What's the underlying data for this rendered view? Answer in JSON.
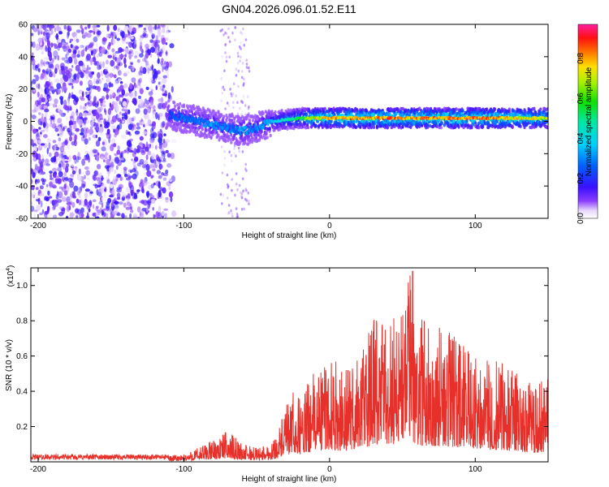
{
  "title": "GN04.2026.096.01.52.E11",
  "chart_data": [
    {
      "type": "heatmap",
      "title": "GN04.2026.096.01.52.E11",
      "xlabel": "Height of straight line (km)",
      "ylabel": "Frequency (Hz)",
      "xlim": [
        -205,
        150
      ],
      "ylim": [
        -60,
        60
      ],
      "xticks": [
        -200,
        -100,
        0,
        100
      ],
      "yticks": [
        60,
        40,
        20,
        0,
        -20,
        -40,
        -60
      ],
      "colorbar": {
        "label": "Normalized spectral amplitude",
        "range": [
          0,
          0.97
        ],
        "ticks": [
          0.0,
          0.2,
          0.4,
          0.6,
          0.8
        ],
        "colormap": "rainbow (violet-blue-cyan-green-yellow-red-pink)"
      },
      "ridge": {
        "description": "Dominant spectral ridge centred near 0-5 Hz, dipping to about -10 Hz near -60 km",
        "x": [
          -110,
          -100,
          -90,
          -80,
          -70,
          -60,
          -50,
          -40,
          -30,
          -20,
          -10,
          0,
          20,
          50,
          80,
          110,
          150
        ],
        "y": [
          4,
          2,
          0,
          -2,
          -4,
          -6,
          -4,
          0,
          1,
          2,
          2,
          2,
          2,
          2,
          2,
          2,
          2
        ],
        "amplitude": [
          0.25,
          0.3,
          0.3,
          0.35,
          0.3,
          0.35,
          0.3,
          0.4,
          0.5,
          0.6,
          0.8,
          0.85,
          0.9,
          0.9,
          0.9,
          0.9,
          0.75
        ]
      },
      "noise_region": {
        "x_range": [
          -205,
          -110
        ],
        "typical_amplitude": 0.15
      },
      "secondary_band": {
        "x_range": [
          -75,
          -55
        ],
        "typical_amplitude": 0.08
      }
    },
    {
      "type": "line",
      "xlabel": "Height of straight line (km)",
      "ylabel": "SNR (10 * v/v)",
      "y_scale_label": "(x10",
      "y_scale_exp": "4",
      "xlim": [
        -205,
        150
      ],
      "ylim": [
        0,
        1.1
      ],
      "xticks": [
        -200,
        -100,
        0,
        100
      ],
      "yticks": [
        1.0,
        0.8,
        0.6,
        0.4,
        0.2
      ],
      "color": "#e8302a",
      "envelope": {
        "x": [
          -205,
          -150,
          -120,
          -100,
          -90,
          -80,
          -70,
          -60,
          -50,
          -40,
          -35,
          -30,
          -25,
          -20,
          -10,
          0,
          10,
          20,
          30,
          40,
          50,
          55,
          60,
          70,
          80,
          90,
          100,
          110,
          120,
          130,
          140,
          150
        ],
        "y": [
          0.03,
          0.03,
          0.03,
          0.04,
          0.08,
          0.12,
          0.17,
          0.1,
          0.08,
          0.1,
          0.18,
          0.3,
          0.38,
          0.35,
          0.5,
          0.58,
          0.5,
          0.6,
          0.78,
          0.8,
          0.9,
          1.06,
          0.8,
          0.75,
          0.72,
          0.65,
          0.62,
          0.55,
          0.55,
          0.48,
          0.42,
          0.46
        ]
      },
      "peak": {
        "x": 57,
        "y": 1.08
      }
    }
  ]
}
